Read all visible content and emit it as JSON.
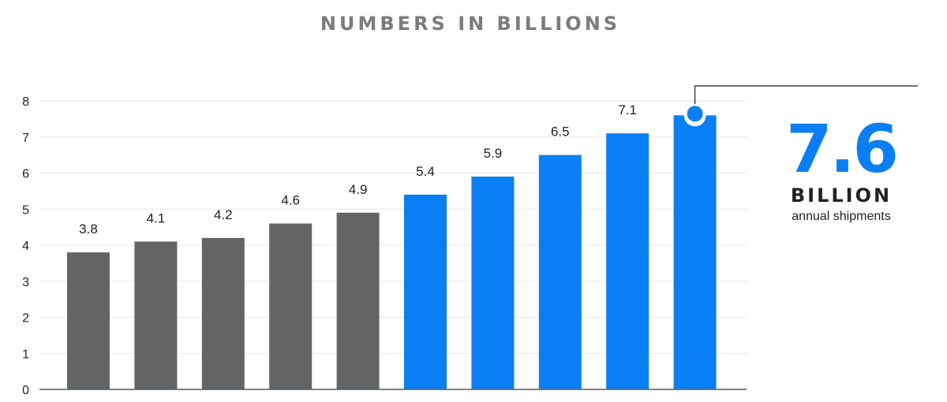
{
  "chart_data": {
    "type": "bar",
    "title": "NUMBERS IN BILLIONS",
    "xlabel": "",
    "ylabel": "",
    "ylim": [
      0,
      8
    ],
    "yticks": [
      0,
      1,
      2,
      3,
      4,
      5,
      6,
      7,
      8
    ],
    "grid": true,
    "categories": [
      "",
      "",
      "",
      "",
      "",
      "",
      "",
      "",
      "",
      ""
    ],
    "values": [
      3.8,
      4.1,
      4.2,
      4.6,
      4.9,
      5.4,
      5.9,
      6.5,
      7.1,
      7.6
    ],
    "data_labels": [
      "3.8",
      "4.1",
      "4.2",
      "4.6",
      "4.9",
      "5.4",
      "5.9",
      "6.5",
      "7.1",
      ""
    ],
    "bar_colors": [
      "#636466",
      "#636466",
      "#636466",
      "#636466",
      "#636466",
      "#0a7ff5",
      "#0a7ff5",
      "#0a7ff5",
      "#0a7ff5",
      "#0a7ff5"
    ],
    "highlight_index": 9,
    "highlight": {
      "value": "7.6",
      "unit": "BILLION",
      "caption": "annual shipments",
      "color": "#0a7ff5"
    }
  }
}
